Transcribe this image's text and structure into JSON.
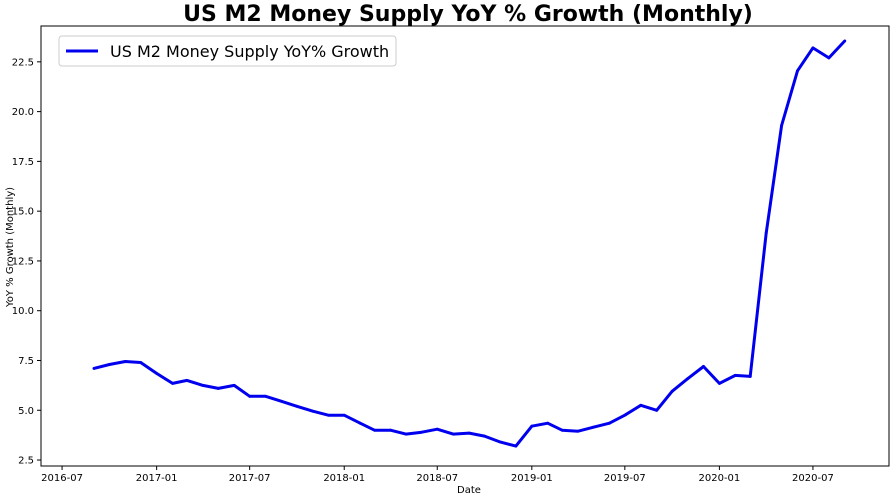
{
  "chart_data": {
    "type": "line",
    "title": "US M2 Money Supply YoY % Growth (Monthly)",
    "xlabel": "Date",
    "ylabel": "YoY % Growth (Monthly)",
    "xlim": [
      "2016-05-21",
      "2020-11-26"
    ],
    "ylim": [
      2.2,
      24.3
    ],
    "x_ticks": [
      "2016-07",
      "2017-01",
      "2017-07",
      "2018-01",
      "2018-07",
      "2019-01",
      "2019-07",
      "2020-01",
      "2020-07"
    ],
    "y_ticks": [
      "2.5",
      "5.0",
      "7.5",
      "10.0",
      "12.5",
      "15.0",
      "17.5",
      "20.0",
      "22.5"
    ],
    "grid": false,
    "legend_position": "top-left",
    "series": [
      {
        "name": "US M2 Money Supply YoY% Growth",
        "color": "#0000ee",
        "x": [
          "2016-09-01",
          "2016-10-01",
          "2016-11-01",
          "2016-12-01",
          "2017-01-01",
          "2017-02-01",
          "2017-03-01",
          "2017-04-01",
          "2017-05-01",
          "2017-06-01",
          "2017-07-01",
          "2017-08-01",
          "2017-09-01",
          "2017-10-01",
          "2017-11-01",
          "2017-12-01",
          "2018-01-01",
          "2018-02-01",
          "2018-03-01",
          "2018-04-01",
          "2018-05-01",
          "2018-06-01",
          "2018-07-01",
          "2018-08-01",
          "2018-09-01",
          "2018-10-01",
          "2018-11-01",
          "2018-12-01",
          "2019-01-01",
          "2019-02-01",
          "2019-03-01",
          "2019-04-01",
          "2019-05-01",
          "2019-06-01",
          "2019-07-01",
          "2019-08-01",
          "2019-09-01",
          "2019-10-01",
          "2019-11-01",
          "2019-12-01",
          "2020-01-01",
          "2020-02-01",
          "2020-03-01",
          "2020-04-01",
          "2020-05-01",
          "2020-06-01",
          "2020-07-01",
          "2020-08-01",
          "2020-09-01"
        ],
        "y": [
          7.1,
          7.3,
          7.45,
          7.4,
          6.85,
          6.35,
          6.5,
          6.25,
          6.1,
          6.25,
          5.7,
          5.7,
          5.45,
          5.2,
          4.95,
          4.75,
          4.75,
          4.35,
          4.0,
          4.0,
          3.8,
          3.9,
          4.05,
          3.8,
          3.85,
          3.7,
          3.4,
          3.2,
          4.2,
          4.35,
          4.0,
          3.95,
          4.15,
          4.35,
          4.75,
          5.25,
          5.0,
          5.95,
          6.6,
          7.2,
          6.35,
          6.75,
          6.7,
          13.9,
          19.3,
          22.05,
          23.2,
          22.7,
          23.55
        ]
      }
    ]
  }
}
